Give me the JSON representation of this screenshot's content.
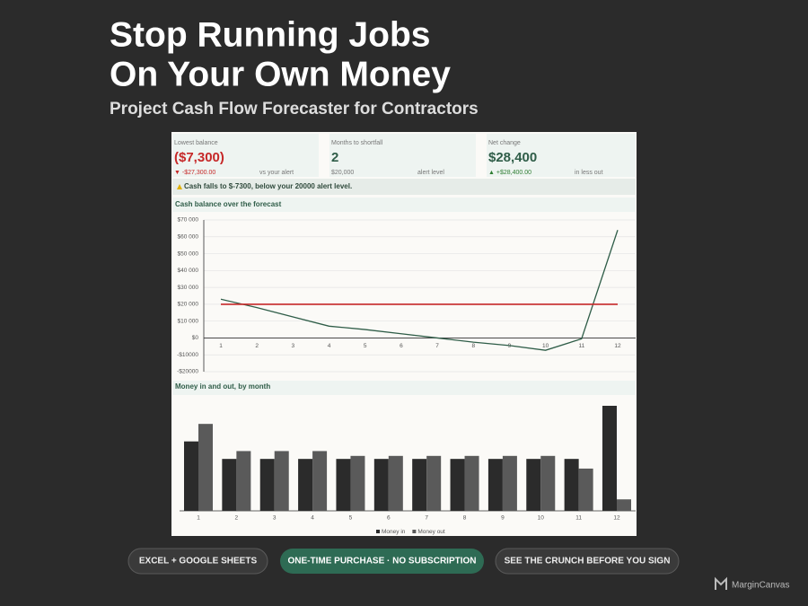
{
  "header": {
    "title_lines": [
      "Stop Running Jobs",
      "On Your Own Money"
    ],
    "subtitle": "Project Cash Flow Forecaster for Contractors"
  },
  "kpis": [
    {
      "label": "Lowest balance",
      "value": "($7,300)",
      "detail": "▼ -$27,300.00",
      "note": "vs your alert"
    },
    {
      "label": "Months to shortfall",
      "value": "2",
      "detail": "$20,000",
      "note": "alert level"
    },
    {
      "label": "Net change",
      "value": "$28,400",
      "detail": "▲ +$28,400.00",
      "note": "in less out"
    }
  ],
  "alert": "Cash falls to $-7300, below your 20000 alert level.",
  "chart_data": [
    {
      "type": "line",
      "title": "Cash balance over the forecast",
      "categories": [
        "1",
        "2",
        "3",
        "4",
        "5",
        "6",
        "7",
        "8",
        "9",
        "10",
        "11",
        "12"
      ],
      "series": [
        {
          "color": "#2f5d48",
          "values": [
            23000,
            18000,
            12500,
            7000,
            5000,
            2500,
            0,
            -2500,
            -4500,
            -7300,
            -500,
            64000
          ]
        },
        {
          "color": "#c62828",
          "values": [
            20000,
            20000,
            20000,
            20000,
            20000,
            20000,
            20000,
            20000,
            20000,
            20000,
            20000,
            20000
          ]
        }
      ],
      "ylim": [
        -20000,
        70000
      ],
      "yticks": [
        {
          "value": -20000,
          "label": "-$20000"
        },
        {
          "value": -10000,
          "label": "-$10000"
        },
        {
          "value": 0,
          "label": "$0"
        },
        {
          "value": 10000,
          "label": "$10 000"
        },
        {
          "value": 20000,
          "label": "$20 000"
        },
        {
          "value": 30000,
          "label": "$30 000"
        },
        {
          "value": 40000,
          "label": "$40 000"
        },
        {
          "value": 50000,
          "label": "$50 000"
        },
        {
          "value": 60000,
          "label": "$60 000"
        },
        {
          "value": 70000,
          "label": "$70 000"
        }
      ],
      "grid": true
    },
    {
      "type": "bar",
      "title": "Money in and out, by month",
      "categories": [
        "1",
        "2",
        "3",
        "4",
        "5",
        "6",
        "7",
        "8",
        "9",
        "10",
        "11",
        "12"
      ],
      "series": [
        {
          "name": "Money in",
          "color": "#2b2b2b",
          "values": [
            11500,
            8600,
            8600,
            8600,
            8600,
            8600,
            8600,
            8600,
            8600,
            8600,
            8600,
            17400
          ]
        },
        {
          "name": "Money out",
          "color": "#5a5a5a",
          "values": [
            14400,
            9900,
            9900,
            9900,
            9100,
            9100,
            9100,
            9100,
            9100,
            9100,
            7000,
            1900
          ]
        }
      ],
      "legend": "bottom"
    }
  ],
  "buttons": [
    "EXCEL + GOOGLE SHEETS",
    "ONE-TIME PURCHASE · NO SUBSCRIPTION",
    "SEE THE CRUNCH BEFORE YOU SIGN"
  ],
  "brand": "MarginCanvas"
}
